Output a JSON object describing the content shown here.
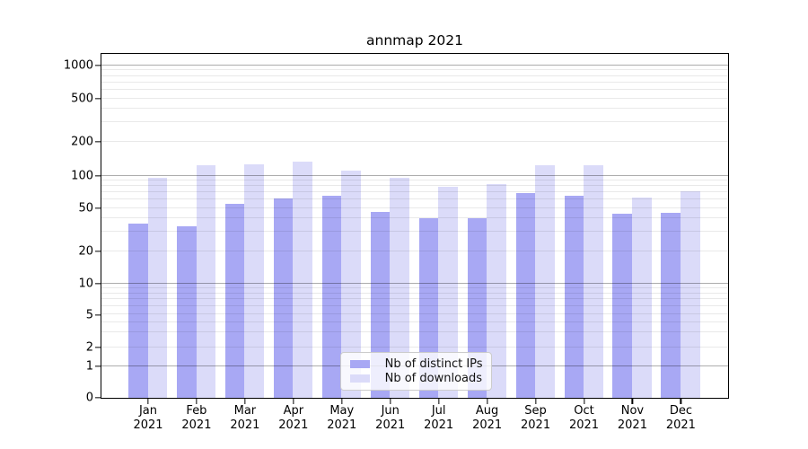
{
  "chart_data": {
    "type": "bar",
    "title": "annmap 2021",
    "categories": [
      "Jan",
      "Feb",
      "Mar",
      "Apr",
      "May",
      "Jun",
      "Jul",
      "Aug",
      "Sep",
      "Oct",
      "Nov",
      "Dec"
    ],
    "x_tick_second_line": "2021",
    "series": [
      {
        "name": "Nb of distinct IPs",
        "color": "#a8a8f4",
        "values": [
          36,
          34,
          55,
          61,
          65,
          46,
          40,
          40,
          69,
          65,
          44,
          45
        ]
      },
      {
        "name": "Nb of downloads",
        "color": "#dbdbf9",
        "values": [
          96,
          124,
          126,
          133,
          110,
          96,
          79,
          84,
          124,
          124,
          62,
          72
        ]
      }
    ],
    "yscale": "symlog",
    "ylim": [
      0,
      1280
    ],
    "grid": true,
    "legend_position": "lower center",
    "y_ticks": [
      {
        "value": 0,
        "label": "0"
      },
      {
        "value": 1,
        "label": "1"
      },
      {
        "value": 2,
        "label": "2"
      },
      {
        "value": 5,
        "label": "5"
      },
      {
        "value": 10,
        "label": "10"
      },
      {
        "value": 20,
        "label": "20"
      },
      {
        "value": 50,
        "label": "50"
      },
      {
        "value": 100,
        "label": "100"
      },
      {
        "value": 200,
        "label": "200"
      },
      {
        "value": 500,
        "label": "500"
      },
      {
        "value": 1000,
        "label": "1000"
      }
    ],
    "y_major_gridlines": [
      1,
      10,
      100,
      1000
    ],
    "y_minor_gridline_decades": [
      1,
      10,
      100
    ],
    "scale_anchors": [
      [
        0,
        0.0
      ],
      [
        1,
        0.0914
      ],
      [
        2,
        0.1462
      ],
      [
        5,
        0.2415
      ],
      [
        10,
        0.3316
      ],
      [
        20,
        0.4256
      ],
      [
        50,
        0.5509
      ],
      [
        100,
        0.6449
      ],
      [
        200,
        0.7441
      ],
      [
        500,
        0.8694
      ],
      [
        1000,
        0.9661
      ]
    ],
    "colors": {
      "axis": "#000000",
      "text": "#000000",
      "major_grid": "rgba(0,0,0,0.32)",
      "minor_grid": "rgba(0,0,0,0.085)",
      "legend_border": "#cccccc",
      "background": "#ffffff"
    }
  }
}
